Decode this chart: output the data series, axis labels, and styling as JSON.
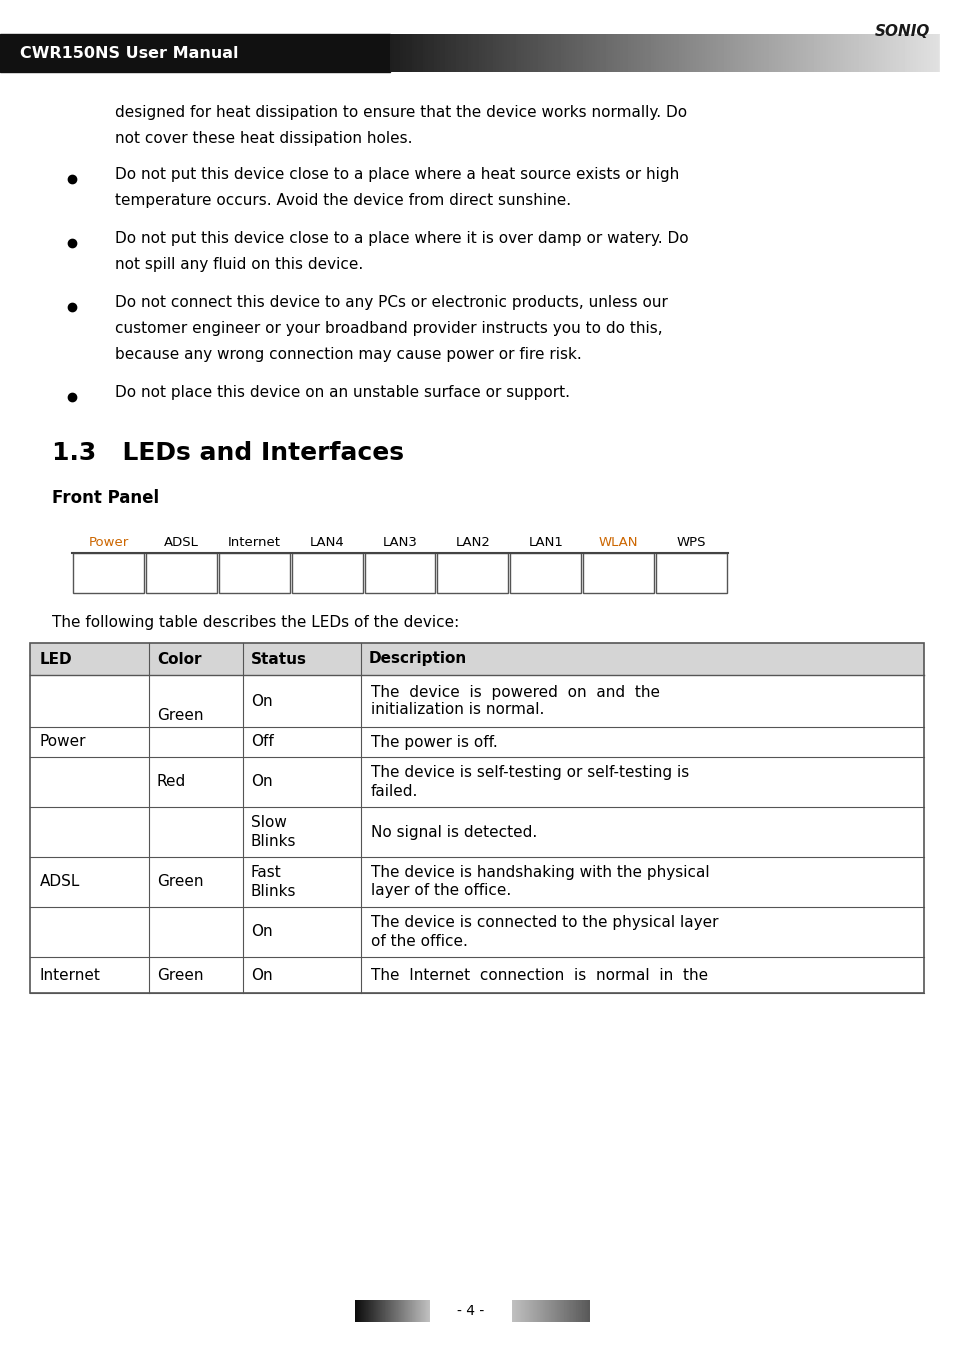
{
  "page_bg": "#ffffff",
  "header_text": "CWR150NS User Manual",
  "brand_text": "SONIQ",
  "body_line1": "designed for heat dissipation to ensure that the device works normally. Do",
  "body_line2": "not cover these heat dissipation holes.",
  "bullets": [
    [
      "Do not put this device close to a place where a heat source exists or high",
      "temperature occurs. Avoid the device from direct sunshine."
    ],
    [
      "Do not put this device close to a place where it is over damp or watery. Do",
      "not spill any fluid on this device."
    ],
    [
      "Do not connect this device to any PCs or electronic products, unless our",
      "customer engineer or your broadband provider instructs you to do this,",
      "because any wrong connection may cause power or fire risk."
    ],
    [
      "Do not place this device on an unstable surface or support."
    ]
  ],
  "section_title": "1.3   LEDs and Interfaces",
  "front_panel_label": "Front Panel",
  "led_labels": [
    "Power",
    "ADSL",
    "Internet",
    "LAN4",
    "LAN3",
    "LAN2",
    "LAN1",
    "WLAN",
    "WPS"
  ],
  "led_label_colors": [
    "#cc6600",
    "#000000",
    "#000000",
    "#000000",
    "#000000",
    "#000000",
    "#000000",
    "#cc6600",
    "#000000"
  ],
  "table_intro": "The following table describes the LEDs of the device:",
  "table_headers": [
    "LED",
    "Color",
    "Status",
    "Description"
  ],
  "footer_text": "- 4 -"
}
